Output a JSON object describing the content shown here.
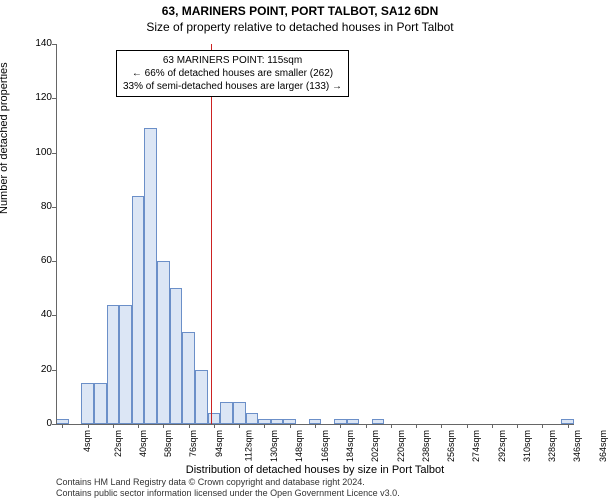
{
  "title": "63, MARINERS POINT, PORT TALBOT, SA12 6DN",
  "subtitle": "Size of property relative to detached houses in Port Talbot",
  "ylabel": "Number of detached properties",
  "xlabel": "Distribution of detached houses by size in Port Talbot",
  "chart": {
    "type": "histogram",
    "ylim": [
      0,
      140
    ],
    "yticks": [
      0,
      20,
      40,
      60,
      80,
      100,
      120,
      140
    ],
    "xticks": [
      "4sqm",
      "22sqm",
      "40sqm",
      "58sqm",
      "76sqm",
      "94sqm",
      "112sqm",
      "130sqm",
      "148sqm",
      "166sqm",
      "184sqm",
      "202sqm",
      "220sqm",
      "238sqm",
      "256sqm",
      "274sqm",
      "292sqm",
      "310sqm",
      "328sqm",
      "346sqm",
      "364sqm"
    ],
    "bar_values": [
      2,
      0,
      15,
      15,
      44,
      44,
      84,
      109,
      60,
      50,
      34,
      20,
      4,
      8,
      8,
      4,
      2,
      2,
      2,
      0,
      2,
      0,
      2,
      2,
      0,
      2,
      0,
      0,
      0,
      0,
      0,
      0,
      0,
      0,
      0,
      0,
      0,
      0,
      0,
      0,
      2
    ],
    "bar_fill": "#dce6f5",
    "bar_border": "#6b8fc8",
    "refline_x_bin": 12.3,
    "refline_color": "#cc2222",
    "background": "#ffffff",
    "axis_color": "#666666"
  },
  "annotation": {
    "line1": "63 MARINERS POINT: 115sqm",
    "line2": "← 66% of detached houses are smaller (262)",
    "line3": "33% of semi-detached houses are larger (133) →"
  },
  "footer": {
    "line1": "Contains HM Land Registry data © Crown copyright and database right 2024.",
    "line2": "Contains public sector information licensed under the Open Government Licence v3.0."
  }
}
